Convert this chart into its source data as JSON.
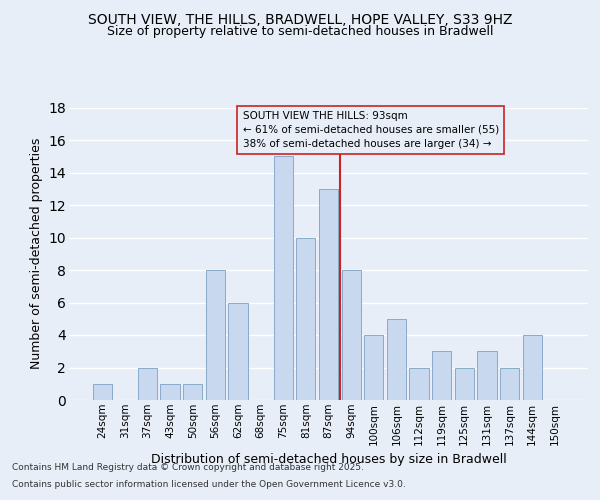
{
  "title": "SOUTH VIEW, THE HILLS, BRADWELL, HOPE VALLEY, S33 9HZ",
  "subtitle": "Size of property relative to semi-detached houses in Bradwell",
  "xlabel": "Distribution of semi-detached houses by size in Bradwell",
  "ylabel": "Number of semi-detached properties",
  "categories": [
    "24sqm",
    "31sqm",
    "37sqm",
    "43sqm",
    "50sqm",
    "56sqm",
    "62sqm",
    "68sqm",
    "75sqm",
    "81sqm",
    "87sqm",
    "94sqm",
    "100sqm",
    "106sqm",
    "112sqm",
    "119sqm",
    "125sqm",
    "131sqm",
    "137sqm",
    "144sqm",
    "150sqm"
  ],
  "values": [
    1,
    0,
    2,
    1,
    1,
    8,
    6,
    0,
    15,
    10,
    13,
    8,
    4,
    5,
    2,
    3,
    2,
    3,
    2,
    4,
    0
  ],
  "bar_color": "#c8d8ee",
  "bar_edge_color": "#88aac8",
  "vline_x": 10.5,
  "vline_color": "#cc2222",
  "annotation_title": "SOUTH VIEW THE HILLS: 93sqm",
  "annotation_line1": "← 61% of semi-detached houses are smaller (55)",
  "annotation_line2": "38% of semi-detached houses are larger (34) →",
  "annotation_box_edge": "#cc2222",
  "ylim": [
    0,
    18
  ],
  "yticks": [
    0,
    2,
    4,
    6,
    8,
    10,
    12,
    14,
    16,
    18
  ],
  "footnote1": "Contains HM Land Registry data © Crown copyright and database right 2025.",
  "footnote2": "Contains public sector information licensed under the Open Government Licence v3.0.",
  "bg_color": "#e8eef8",
  "plot_bg_color": "#e8eef8",
  "grid_color": "#ffffff",
  "title_fontsize": 10,
  "subtitle_fontsize": 9,
  "ylabel_fontsize": 9,
  "xlabel_fontsize": 9,
  "tick_fontsize": 7.5,
  "footnote_fontsize": 6.5
}
